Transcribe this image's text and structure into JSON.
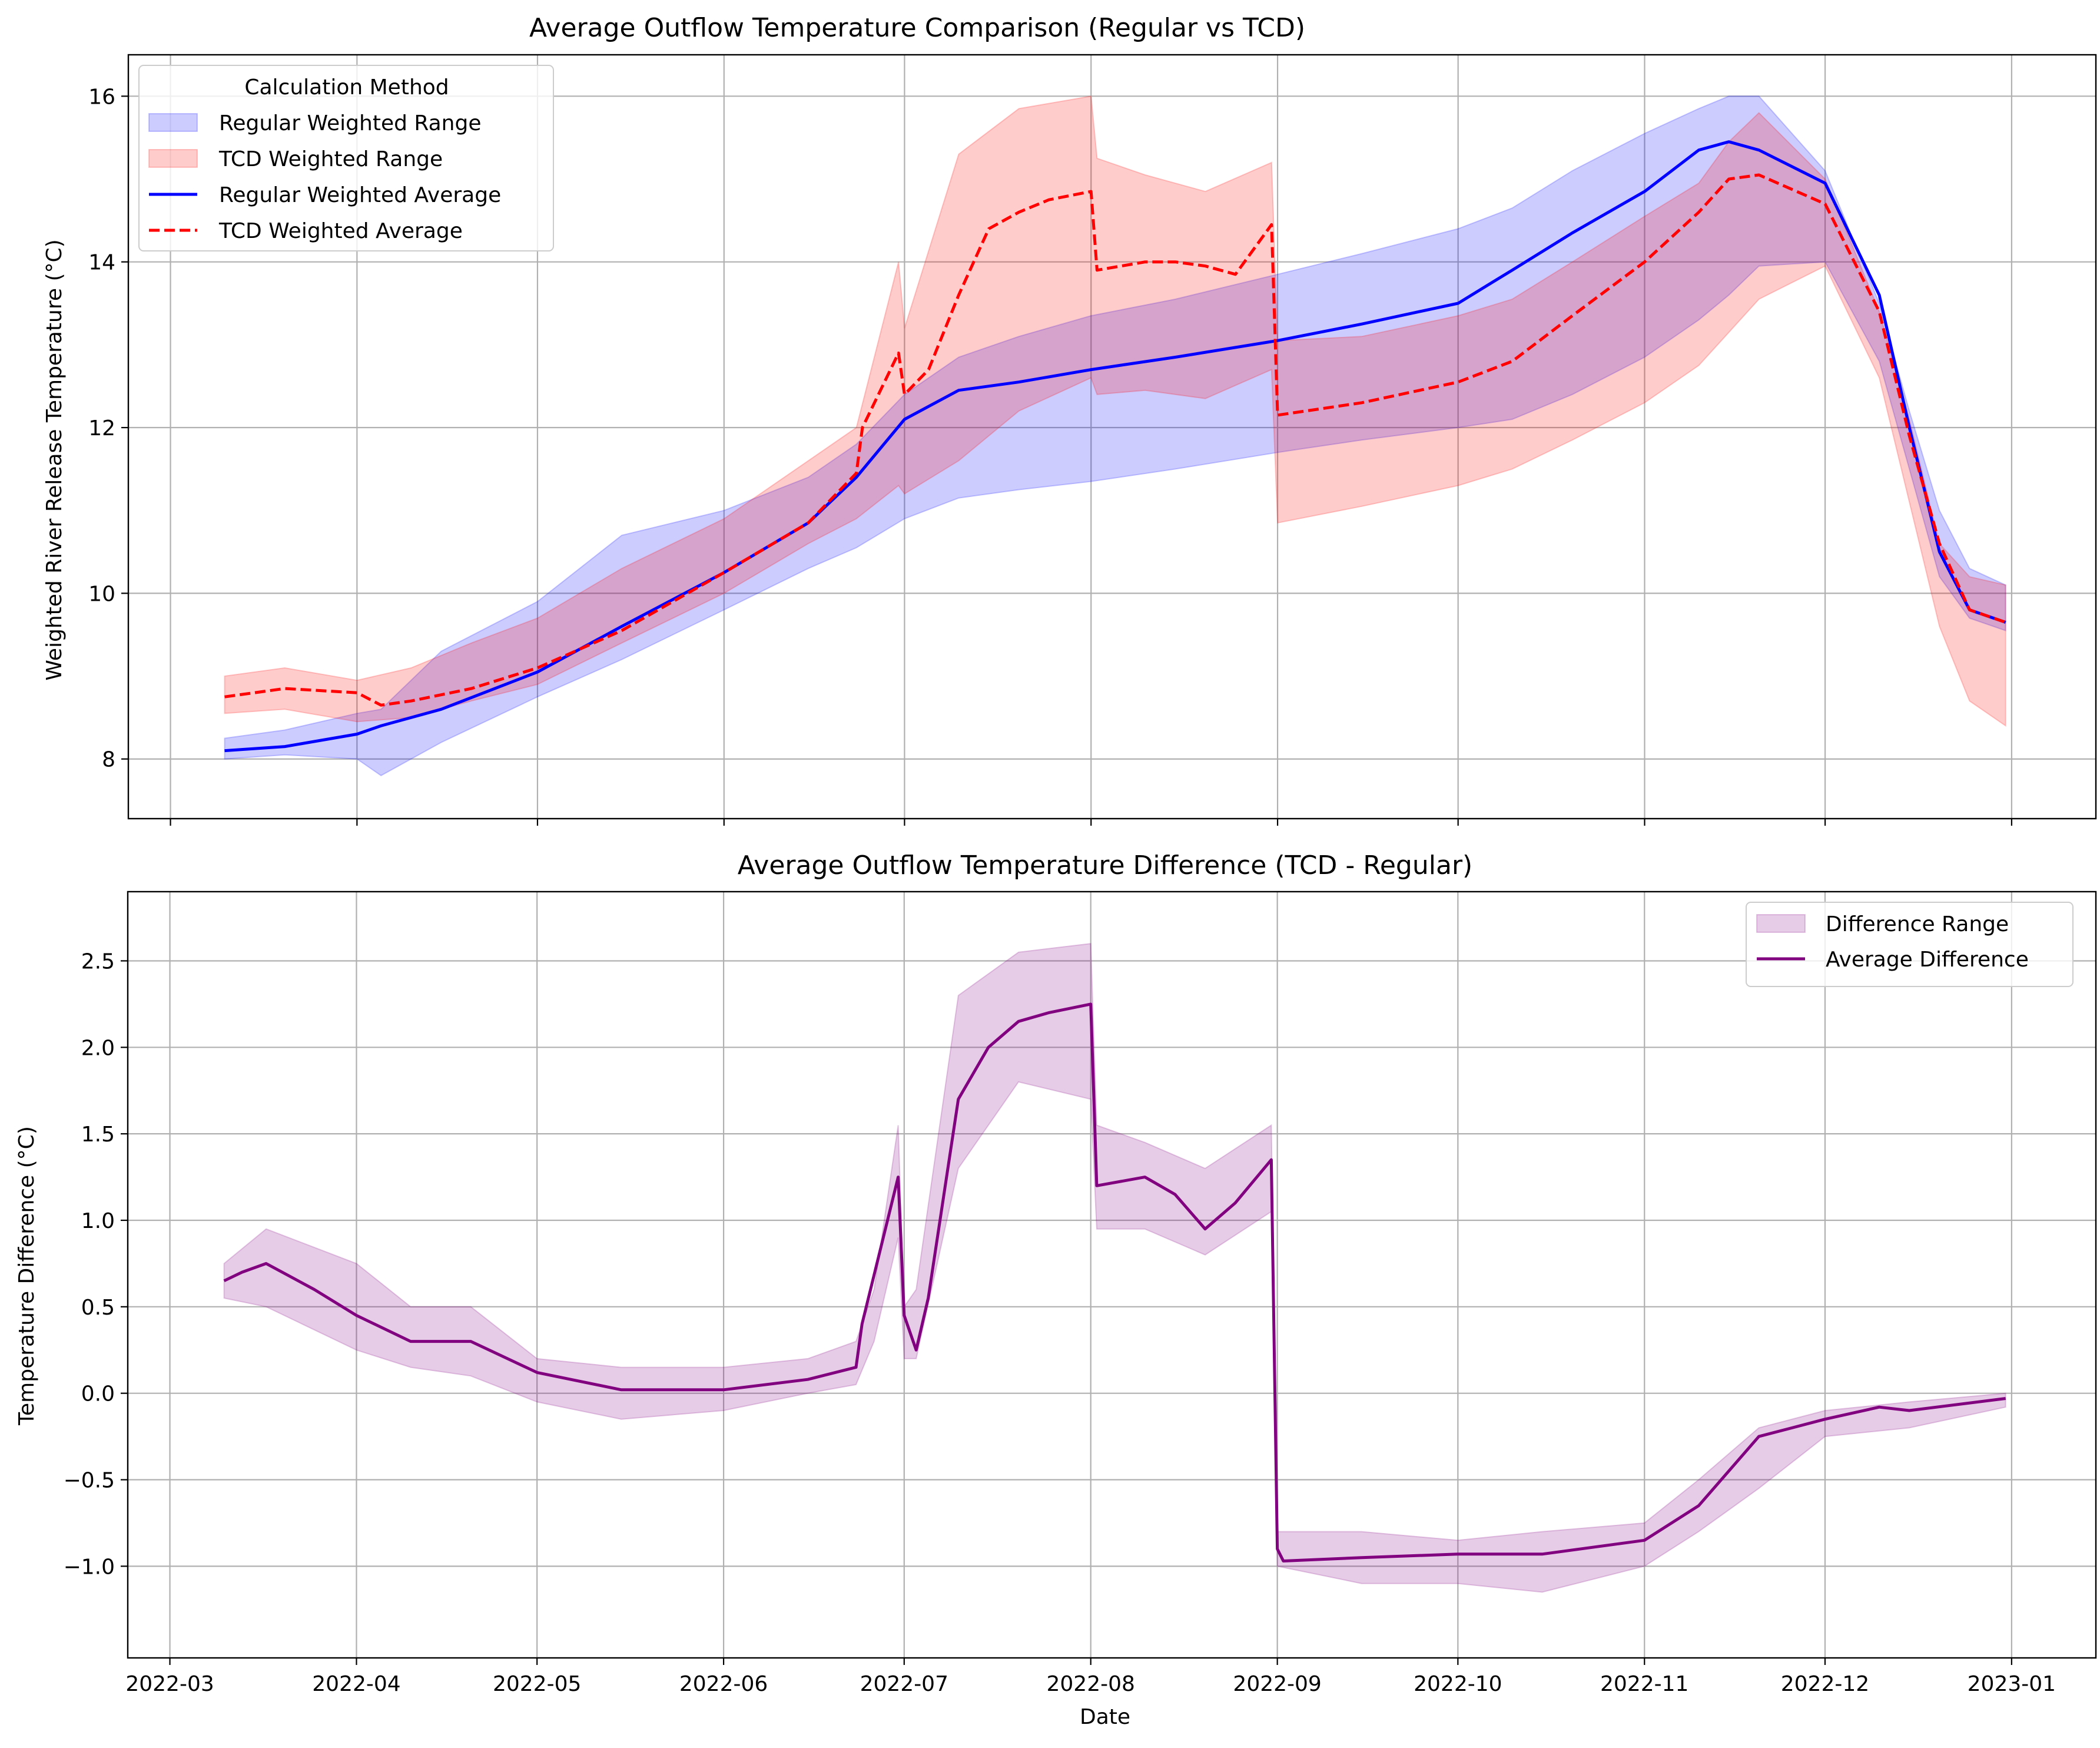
{
  "chart_data": [
    {
      "type": "line",
      "title": "Average Outflow Temperature Comparison (Regular vs TCD)",
      "xlabel": "",
      "ylabel": "Weighted River Release Temperature (°C)",
      "xlim": [
        "2022-02-22",
        "2023-01-15"
      ],
      "ylim": [
        7.28,
        16.5
      ],
      "x_ticks": [
        "2022-03",
        "2022-04",
        "2022-05",
        "2022-06",
        "2022-07",
        "2022-08",
        "2022-09",
        "2022-10",
        "2022-11",
        "2022-12",
        "2023-01"
      ],
      "y_ticks": [
        8,
        10,
        12,
        14,
        16
      ],
      "y_tick_labels": [
        "8",
        "10",
        "12",
        "14",
        "16"
      ],
      "grid": true,
      "legend": {
        "title": "Calculation Method",
        "position": "upper-left",
        "entries": [
          "Regular Weighted Range",
          "TCD Weighted Range",
          "Regular Weighted Average",
          "TCD Weighted Average"
        ]
      },
      "series": [
        {
          "name": "Regular Weighted Range",
          "style": "band",
          "color": "#0000ff",
          "x": [
            "2022-03-10",
            "2022-03-20",
            "2022-04-01",
            "2022-04-05",
            "2022-04-15",
            "2022-05-01",
            "2022-05-15",
            "2022-06-01",
            "2022-06-15",
            "2022-06-23",
            "2022-07-01",
            "2022-07-10",
            "2022-07-20",
            "2022-08-01",
            "2022-08-15",
            "2022-09-01",
            "2022-09-15",
            "2022-10-01",
            "2022-10-10",
            "2022-10-20",
            "2022-11-01",
            "2022-11-10",
            "2022-11-15",
            "2022-11-20",
            "2022-12-01",
            "2022-12-10",
            "2022-12-15",
            "2022-12-20",
            "2022-12-25",
            "2022-12-31"
          ],
          "lower": [
            8.0,
            8.05,
            8.0,
            7.8,
            8.2,
            8.75,
            9.2,
            9.8,
            10.3,
            10.55,
            10.9,
            11.15,
            11.25,
            11.35,
            11.5,
            11.7,
            11.85,
            12.0,
            12.1,
            12.4,
            12.85,
            13.3,
            13.6,
            13.95,
            14.0,
            12.8,
            11.5,
            10.2,
            9.7,
            9.55
          ],
          "upper": [
            8.25,
            8.35,
            8.55,
            8.6,
            9.3,
            9.9,
            10.7,
            11.0,
            11.4,
            11.8,
            12.4,
            12.85,
            13.1,
            13.35,
            13.55,
            13.85,
            14.1,
            14.4,
            14.65,
            15.1,
            15.55,
            15.85,
            16.0,
            16.0,
            15.1,
            13.5,
            12.2,
            11.0,
            10.3,
            10.1
          ]
        },
        {
          "name": "TCD Weighted Range",
          "style": "band",
          "color": "#ff0000",
          "x": [
            "2022-03-10",
            "2022-03-20",
            "2022-04-01",
            "2022-04-10",
            "2022-04-20",
            "2022-05-01",
            "2022-05-15",
            "2022-06-01",
            "2022-06-15",
            "2022-06-23",
            "2022-06-30",
            "2022-07-01",
            "2022-07-10",
            "2022-07-20",
            "2022-08-01",
            "2022-08-02",
            "2022-08-10",
            "2022-08-20",
            "2022-08-31",
            "2022-09-01",
            "2022-09-15",
            "2022-10-01",
            "2022-10-10",
            "2022-10-20",
            "2022-11-01",
            "2022-11-10",
            "2022-11-15",
            "2022-11-20",
            "2022-12-01",
            "2022-12-10",
            "2022-12-15",
            "2022-12-20",
            "2022-12-25",
            "2022-12-31"
          ],
          "lower": [
            8.55,
            8.6,
            8.45,
            8.5,
            8.7,
            8.9,
            9.4,
            10.0,
            10.6,
            10.9,
            11.3,
            11.2,
            11.6,
            12.2,
            12.6,
            12.4,
            12.45,
            12.35,
            12.7,
            10.85,
            11.05,
            11.3,
            11.5,
            11.85,
            12.3,
            12.75,
            13.15,
            13.55,
            13.95,
            12.6,
            11.1,
            9.6,
            8.7,
            8.4
          ],
          "upper": [
            9.0,
            9.1,
            8.95,
            9.1,
            9.4,
            9.7,
            10.3,
            10.9,
            11.6,
            12.0,
            14.0,
            13.2,
            15.3,
            15.85,
            16.0,
            15.25,
            15.05,
            14.85,
            15.2,
            13.05,
            13.1,
            13.35,
            13.55,
            14.0,
            14.55,
            14.95,
            15.45,
            15.8,
            15.0,
            13.4,
            12.1,
            10.6,
            10.2,
            10.1
          ]
        },
        {
          "name": "Regular Weighted Average",
          "style": "solid",
          "color": "#0000ff",
          "x": [
            "2022-03-10",
            "2022-03-20",
            "2022-04-01",
            "2022-04-05",
            "2022-04-15",
            "2022-05-01",
            "2022-05-15",
            "2022-06-01",
            "2022-06-15",
            "2022-06-23",
            "2022-07-01",
            "2022-07-10",
            "2022-07-20",
            "2022-08-01",
            "2022-08-15",
            "2022-09-01",
            "2022-09-15",
            "2022-10-01",
            "2022-10-10",
            "2022-10-20",
            "2022-11-01",
            "2022-11-10",
            "2022-11-15",
            "2022-11-20",
            "2022-12-01",
            "2022-12-10",
            "2022-12-15",
            "2022-12-20",
            "2022-12-25",
            "2022-12-31"
          ],
          "values": [
            8.1,
            8.15,
            8.3,
            8.4,
            8.6,
            9.05,
            9.6,
            10.25,
            10.85,
            11.4,
            12.1,
            12.45,
            12.55,
            12.7,
            12.85,
            13.05,
            13.25,
            13.5,
            13.9,
            14.35,
            14.85,
            15.35,
            15.45,
            15.35,
            14.95,
            13.6,
            12.0,
            10.5,
            9.8,
            9.65
          ]
        },
        {
          "name": "TCD Weighted Average",
          "style": "dashed",
          "color": "#ff0000",
          "x": [
            "2022-03-10",
            "2022-03-20",
            "2022-04-01",
            "2022-04-05",
            "2022-04-10",
            "2022-04-20",
            "2022-05-01",
            "2022-05-15",
            "2022-06-01",
            "2022-06-15",
            "2022-06-23",
            "2022-06-24",
            "2022-06-30",
            "2022-07-01",
            "2022-07-05",
            "2022-07-10",
            "2022-07-15",
            "2022-07-20",
            "2022-07-25",
            "2022-08-01",
            "2022-08-02",
            "2022-08-10",
            "2022-08-15",
            "2022-08-20",
            "2022-08-25",
            "2022-08-31",
            "2022-09-01",
            "2022-09-15",
            "2022-10-01",
            "2022-10-10",
            "2022-10-20",
            "2022-11-01",
            "2022-11-10",
            "2022-11-15",
            "2022-11-20",
            "2022-12-01",
            "2022-12-10",
            "2022-12-15",
            "2022-12-20",
            "2022-12-25",
            "2022-12-31"
          ],
          "values": [
            8.75,
            8.85,
            8.8,
            8.65,
            8.7,
            8.85,
            9.1,
            9.55,
            10.25,
            10.85,
            11.45,
            12.0,
            12.9,
            12.4,
            12.7,
            13.6,
            14.4,
            14.6,
            14.75,
            14.85,
            13.9,
            14.0,
            14.0,
            13.95,
            13.85,
            14.45,
            12.15,
            12.3,
            12.55,
            12.8,
            13.35,
            14.0,
            14.6,
            15.0,
            15.05,
            14.7,
            13.4,
            11.9,
            10.6,
            9.8,
            9.65
          ]
        }
      ]
    },
    {
      "type": "line",
      "title": "Average Outflow Temperature Difference (TCD - Regular)",
      "xlabel": "Date",
      "ylabel": "Temperature Difference (°C)",
      "xlim": [
        "2022-02-22",
        "2023-01-15"
      ],
      "ylim": [
        -1.53,
        2.9
      ],
      "x_ticks": [
        "2022-03",
        "2022-04",
        "2022-05",
        "2022-06",
        "2022-07",
        "2022-08",
        "2022-09",
        "2022-10",
        "2022-11",
        "2022-12",
        "2023-01"
      ],
      "x_tick_labels": [
        "2022-03",
        "2022-04",
        "2022-05",
        "2022-06",
        "2022-07",
        "2022-08",
        "2022-09",
        "2022-10",
        "2022-11",
        "2022-12",
        "2023-01"
      ],
      "y_ticks": [
        -1.0,
        -0.5,
        0.0,
        0.5,
        1.0,
        1.5,
        2.0,
        2.5
      ],
      "y_tick_labels": [
        "−1.0",
        "−0.5",
        "0.0",
        "0.5",
        "1.0",
        "1.5",
        "2.0",
        "2.5"
      ],
      "grid": true,
      "legend": {
        "position": "upper-right",
        "entries": [
          "Difference Range",
          "Average Difference"
        ]
      },
      "series": [
        {
          "name": "Difference Range",
          "style": "band",
          "color": "#800080",
          "x": [
            "2022-03-10",
            "2022-03-17",
            "2022-04-01",
            "2022-04-10",
            "2022-04-20",
            "2022-05-01",
            "2022-05-15",
            "2022-06-01",
            "2022-06-15",
            "2022-06-23",
            "2022-06-26",
            "2022-06-30",
            "2022-07-01",
            "2022-07-03",
            "2022-07-10",
            "2022-07-20",
            "2022-08-01",
            "2022-08-02",
            "2022-08-10",
            "2022-08-20",
            "2022-08-31",
            "2022-09-01",
            "2022-09-15",
            "2022-10-01",
            "2022-10-15",
            "2022-11-01",
            "2022-11-10",
            "2022-11-20",
            "2022-12-01",
            "2022-12-15",
            "2022-12-31"
          ],
          "lower": [
            0.55,
            0.5,
            0.25,
            0.15,
            0.1,
            -0.05,
            -0.15,
            -0.1,
            0.0,
            0.05,
            0.3,
            0.9,
            0.2,
            0.2,
            1.3,
            1.8,
            1.7,
            0.95,
            0.95,
            0.8,
            1.05,
            -1.0,
            -1.1,
            -1.1,
            -1.15,
            -1.0,
            -0.8,
            -0.55,
            -0.25,
            -0.2,
            -0.08
          ],
          "upper": [
            0.75,
            0.95,
            0.75,
            0.5,
            0.5,
            0.2,
            0.15,
            0.15,
            0.2,
            0.3,
            0.6,
            1.55,
            0.5,
            0.6,
            2.3,
            2.55,
            2.6,
            1.55,
            1.45,
            1.3,
            1.55,
            -0.8,
            -0.8,
            -0.85,
            -0.8,
            -0.75,
            -0.5,
            -0.2,
            -0.1,
            -0.05,
            0.0
          ]
        },
        {
          "name": "Average Difference",
          "style": "solid",
          "color": "#800080",
          "x": [
            "2022-03-10",
            "2022-03-13",
            "2022-03-17",
            "2022-03-25",
            "2022-04-01",
            "2022-04-10",
            "2022-04-20",
            "2022-05-01",
            "2022-05-15",
            "2022-06-01",
            "2022-06-15",
            "2022-06-23",
            "2022-06-24",
            "2022-06-30",
            "2022-07-01",
            "2022-07-03",
            "2022-07-05",
            "2022-07-10",
            "2022-07-15",
            "2022-07-20",
            "2022-07-25",
            "2022-08-01",
            "2022-08-02",
            "2022-08-10",
            "2022-08-15",
            "2022-08-20",
            "2022-08-25",
            "2022-08-31",
            "2022-09-01",
            "2022-09-02",
            "2022-09-15",
            "2022-10-01",
            "2022-10-15",
            "2022-11-01",
            "2022-11-10",
            "2022-11-20",
            "2022-12-01",
            "2022-12-10",
            "2022-12-15",
            "2022-12-31"
          ],
          "values": [
            0.65,
            0.7,
            0.75,
            0.6,
            0.45,
            0.3,
            0.3,
            0.12,
            0.02,
            0.02,
            0.08,
            0.15,
            0.4,
            1.25,
            0.45,
            0.25,
            0.55,
            1.7,
            2.0,
            2.15,
            2.2,
            2.25,
            1.2,
            1.25,
            1.15,
            0.95,
            1.1,
            1.35,
            -0.9,
            -0.97,
            -0.95,
            -0.93,
            -0.93,
            -0.85,
            -0.65,
            -0.25,
            -0.15,
            -0.08,
            -0.1,
            -0.03
          ]
        }
      ]
    }
  ]
}
